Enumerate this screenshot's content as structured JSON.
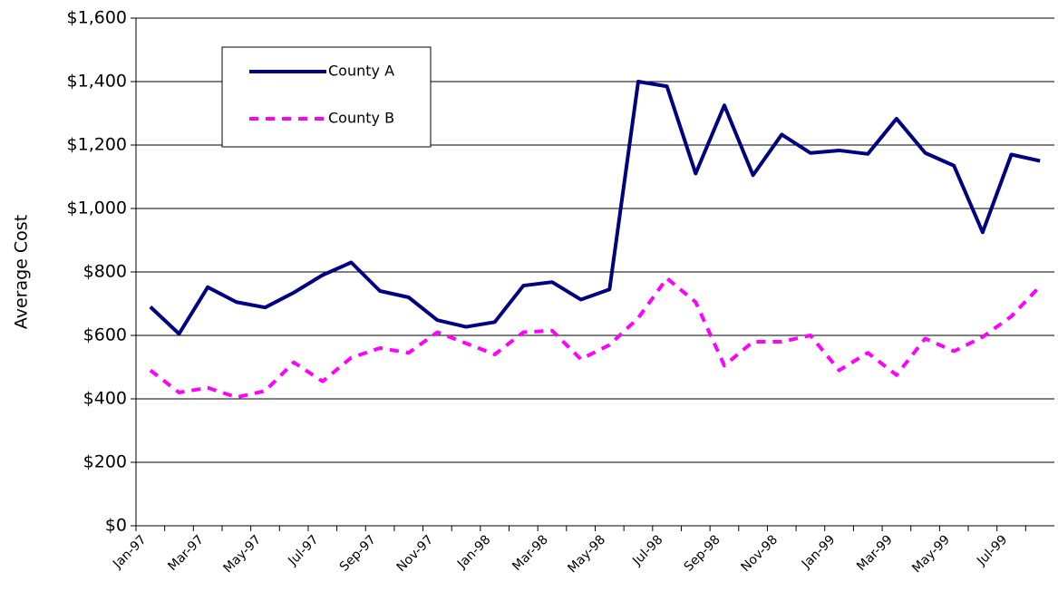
{
  "chart_data": {
    "type": "line",
    "y_label": "Average Cost",
    "categories": [
      "Jan-97",
      null,
      "Mar-97",
      null,
      "May-97",
      null,
      "Jul-97",
      null,
      "Sep-97",
      null,
      "Nov-97",
      null,
      "Jan-98",
      null,
      "Mar-98",
      null,
      "May-98",
      null,
      "Jul-98",
      null,
      "Sep-98",
      null,
      "Nov-98",
      null,
      "Jan-99",
      null,
      "Mar-99",
      null,
      "May-99",
      null,
      "Jul-99",
      null
    ],
    "series": [
      {
        "name": "County A",
        "color": "#000080",
        "dash": "solid",
        "values": [
          690,
          605,
          752,
          705,
          688,
          735,
          790,
          830,
          740,
          720,
          648,
          627,
          642,
          757,
          768,
          713,
          745,
          1400,
          1385,
          1110,
          1325,
          1105,
          1233,
          1175,
          1183,
          1172,
          1283,
          1175,
          1135,
          925,
          1170,
          1150
        ]
      },
      {
        "name": "County B",
        "color": "#ff00ff",
        "dash": "dashed",
        "values": [
          490,
          420,
          435,
          405,
          425,
          515,
          455,
          530,
          560,
          545,
          610,
          575,
          540,
          610,
          615,
          525,
          570,
          655,
          780,
          705,
          505,
          580,
          580,
          600,
          490,
          545,
          475,
          590,
          550,
          595,
          660,
          755
        ]
      }
    ],
    "ylim": [
      0,
      1600
    ],
    "yticks": [
      {
        "value": 0,
        "label": "$0"
      },
      {
        "value": 200,
        "label": "$200"
      },
      {
        "value": 400,
        "label": "$400"
      },
      {
        "value": 600,
        "label": "$600"
      },
      {
        "value": 800,
        "label": "$800"
      },
      {
        "value": 1000,
        "label": "$1,000"
      },
      {
        "value": 1200,
        "label": "$1,200"
      },
      {
        "value": 1400,
        "label": "$1,400"
      },
      {
        "value": 1600,
        "label": "$1,600"
      }
    ],
    "grid": true,
    "legend": "upper-left"
  }
}
